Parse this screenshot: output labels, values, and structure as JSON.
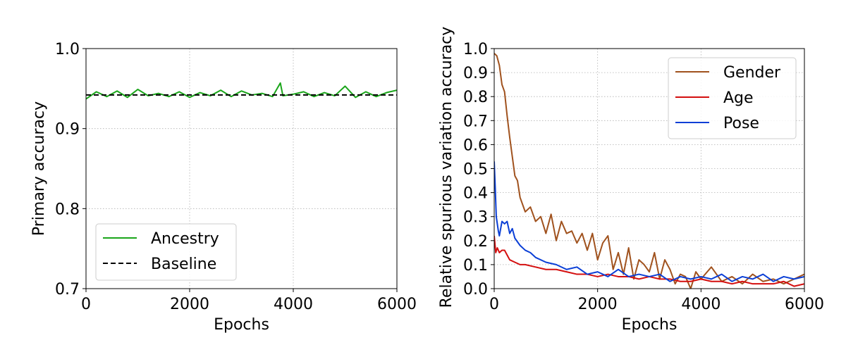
{
  "chart_data": [
    {
      "type": "line",
      "xlabel": "Epochs",
      "ylabel": "Primary accuracy",
      "xlim": [
        0,
        6000
      ],
      "ylim": [
        0.7,
        1.0
      ],
      "xticks": [
        0,
        2000,
        4000,
        6000
      ],
      "xtick_labels": [
        "0",
        "2000",
        "4000",
        "6000"
      ],
      "yticks": [
        0.7,
        0.8,
        0.9,
        1.0
      ],
      "ytick_labels": [
        "0.7",
        "0.8",
        "0.9",
        "1.0"
      ],
      "grid": true,
      "legend_position": "lower-left",
      "series": [
        {
          "name": "Ancestry",
          "color": "#1aa51a",
          "style": "solid",
          "x": [
            0,
            200,
            400,
            600,
            800,
            1000,
            1200,
            1400,
            1600,
            1800,
            2000,
            2200,
            2400,
            2600,
            2800,
            3000,
            3200,
            3400,
            3600,
            3750,
            3800,
            4000,
            4200,
            4400,
            4600,
            4800,
            5000,
            5200,
            5400,
            5600,
            5800,
            6000
          ],
          "y": [
            0.937,
            0.946,
            0.94,
            0.947,
            0.939,
            0.949,
            0.941,
            0.944,
            0.94,
            0.946,
            0.939,
            0.945,
            0.941,
            0.948,
            0.94,
            0.947,
            0.942,
            0.944,
            0.94,
            0.957,
            0.941,
            0.943,
            0.946,
            0.94,
            0.945,
            0.941,
            0.953,
            0.939,
            0.946,
            0.94,
            0.945,
            0.948
          ]
        },
        {
          "name": "Baseline",
          "color": "#000000",
          "style": "dashed",
          "x": [
            0,
            6000
          ],
          "y": [
            0.942,
            0.942
          ]
        }
      ]
    },
    {
      "type": "line",
      "xlabel": "Epochs",
      "ylabel": "Relative spurious variation accuracy",
      "xlim": [
        0,
        6000
      ],
      "ylim": [
        0.0,
        1.0
      ],
      "xticks": [
        0,
        2000,
        4000,
        6000
      ],
      "xtick_labels": [
        "0",
        "2000",
        "4000",
        "6000"
      ],
      "yticks": [
        0.0,
        0.1,
        0.2,
        0.3,
        0.4,
        0.5,
        0.6,
        0.7,
        0.8,
        0.9,
        1.0
      ],
      "ytick_labels": [
        "0.0",
        "0.1",
        "0.2",
        "0.3",
        "0.4",
        "0.5",
        "0.6",
        "0.7",
        "0.8",
        "0.9",
        "1.0"
      ],
      "grid": true,
      "legend_position": "upper-right",
      "series": [
        {
          "name": "Gender",
          "color": "#a0521e",
          "style": "solid",
          "x": [
            0,
            50,
            100,
            150,
            200,
            250,
            300,
            350,
            400,
            450,
            500,
            600,
            700,
            800,
            900,
            1000,
            1100,
            1200,
            1300,
            1400,
            1500,
            1600,
            1700,
            1800,
            1900,
            2000,
            2100,
            2200,
            2300,
            2400,
            2500,
            2600,
            2700,
            2800,
            2900,
            3000,
            3100,
            3200,
            3300,
            3400,
            3500,
            3600,
            3700,
            3800,
            3900,
            4000,
            4200,
            4400,
            4600,
            4800,
            5000,
            5200,
            5400,
            5600,
            5800,
            6000
          ],
          "y": [
            0.98,
            0.97,
            0.93,
            0.85,
            0.82,
            0.72,
            0.63,
            0.55,
            0.47,
            0.45,
            0.38,
            0.32,
            0.34,
            0.28,
            0.3,
            0.23,
            0.31,
            0.2,
            0.28,
            0.23,
            0.24,
            0.19,
            0.23,
            0.16,
            0.23,
            0.12,
            0.19,
            0.22,
            0.08,
            0.15,
            0.06,
            0.17,
            0.04,
            0.12,
            0.1,
            0.07,
            0.15,
            0.04,
            0.12,
            0.08,
            0.02,
            0.06,
            0.05,
            0.0,
            0.07,
            0.04,
            0.09,
            0.03,
            0.05,
            0.02,
            0.06,
            0.03,
            0.04,
            0.02,
            0.04,
            0.06
          ]
        },
        {
          "name": "Age",
          "color": "#d40f0f",
          "style": "solid",
          "x": [
            0,
            30,
            60,
            100,
            150,
            200,
            250,
            300,
            400,
            500,
            600,
            800,
            1000,
            1200,
            1400,
            1600,
            1800,
            2000,
            2200,
            2400,
            2600,
            2800,
            3000,
            3200,
            3400,
            3600,
            3800,
            4000,
            4200,
            4400,
            4600,
            4800,
            5000,
            5200,
            5400,
            5600,
            5800,
            6000
          ],
          "y": [
            0.22,
            0.15,
            0.17,
            0.15,
            0.16,
            0.16,
            0.14,
            0.12,
            0.11,
            0.1,
            0.1,
            0.09,
            0.08,
            0.08,
            0.07,
            0.06,
            0.06,
            0.05,
            0.06,
            0.05,
            0.05,
            0.04,
            0.05,
            0.04,
            0.04,
            0.03,
            0.03,
            0.04,
            0.03,
            0.03,
            0.02,
            0.03,
            0.02,
            0.02,
            0.02,
            0.03,
            0.01,
            0.02
          ]
        },
        {
          "name": "Pose",
          "color": "#0b3fd6",
          "style": "solid",
          "x": [
            0,
            20,
            40,
            60,
            80,
            100,
            150,
            200,
            250,
            300,
            350,
            400,
            500,
            600,
            700,
            800,
            1000,
            1200,
            1400,
            1600,
            1800,
            2000,
            2200,
            2400,
            2600,
            2800,
            3000,
            3200,
            3400,
            3600,
            3800,
            4000,
            4200,
            4400,
            4600,
            4800,
            5000,
            5200,
            5400,
            5600,
            5800,
            6000
          ],
          "y": [
            0.53,
            0.42,
            0.3,
            0.27,
            0.24,
            0.22,
            0.28,
            0.27,
            0.28,
            0.23,
            0.25,
            0.21,
            0.18,
            0.16,
            0.15,
            0.13,
            0.11,
            0.1,
            0.08,
            0.09,
            0.06,
            0.07,
            0.05,
            0.08,
            0.05,
            0.06,
            0.05,
            0.06,
            0.03,
            0.05,
            0.04,
            0.05,
            0.04,
            0.06,
            0.03,
            0.05,
            0.04,
            0.06,
            0.03,
            0.05,
            0.04,
            0.05
          ]
        }
      ]
    }
  ]
}
